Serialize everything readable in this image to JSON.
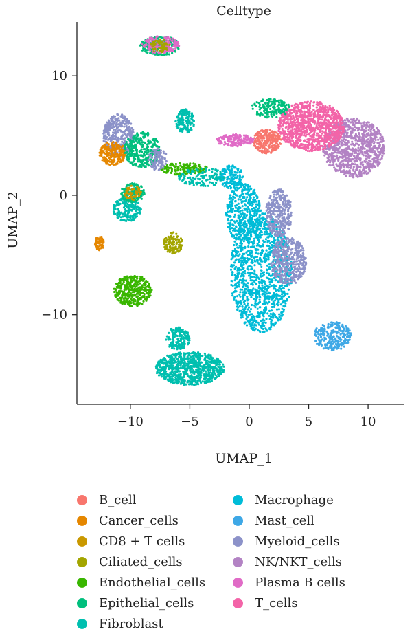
{
  "chart_data": {
    "type": "scatter",
    "title": "Celltype",
    "xlabel": "UMAP_1",
    "ylabel": "UMAP_2",
    "xlim": [
      -14.5,
      13
    ],
    "ylim": [
      -17.5,
      14.5
    ],
    "xticks": [
      -10,
      -5,
      0,
      5,
      10
    ],
    "yticks": [
      10,
      0,
      -10
    ],
    "xtick_labels": [
      "−10",
      "−5",
      "0",
      "5",
      "10"
    ],
    "ytick_labels": [
      "10",
      "0",
      "−10"
    ],
    "legend_position": "bottom",
    "series": [
      {
        "name": "B_cell",
        "color": "#F8766D"
      },
      {
        "name": "Cancer_cells",
        "color": "#E58700"
      },
      {
        "name": "CD8 + T cells",
        "color": "#C99800"
      },
      {
        "name": "Ciliated_cells",
        "color": "#A3A500"
      },
      {
        "name": "Endothelial_cells",
        "color": "#39B600"
      },
      {
        "name": "Epithelial_cells",
        "color": "#00BF7D"
      },
      {
        "name": "Fibroblast",
        "color": "#00BFAF"
      },
      {
        "name": "Macrophage",
        "color": "#00BCD8"
      },
      {
        "name": "Mast_cell",
        "color": "#3EA8E6"
      },
      {
        "name": "Myeloid_cells",
        "color": "#8C92C9"
      },
      {
        "name": "NK/NKT_cells",
        "color": "#B383C4"
      },
      {
        "name": "Plasma B cells",
        "color": "#E06BC6"
      },
      {
        "name": "T_cells",
        "color": "#F364A8"
      }
    ],
    "clusters": [
      {
        "series": "Macrophage",
        "cx": 1.0,
        "cy": -6.5,
        "rx": 2.6,
        "ry": 5.0,
        "n": 1200
      },
      {
        "series": "Macrophage",
        "cx": -0.5,
        "cy": -1.5,
        "rx": 1.5,
        "ry": 2.5,
        "n": 400
      },
      {
        "series": "Macrophage",
        "cx": -1.5,
        "cy": 1.5,
        "rx": 1.0,
        "ry": 1.0,
        "n": 150
      },
      {
        "series": "Myeloid_cells",
        "cx": 2.5,
        "cy": -1.5,
        "rx": 1.1,
        "ry": 2.0,
        "n": 300
      },
      {
        "series": "Myeloid_cells",
        "cx": 3.3,
        "cy": -5.5,
        "rx": 1.5,
        "ry": 2.0,
        "n": 400
      },
      {
        "series": "Mast_cell",
        "cx": 7.0,
        "cy": -11.8,
        "rx": 1.6,
        "ry": 1.2,
        "n": 250
      },
      {
        "series": "Fibroblast",
        "cx": -5.0,
        "cy": -14.5,
        "rx": 2.9,
        "ry": 1.4,
        "n": 800
      },
      {
        "series": "Fibroblast",
        "cx": -6.0,
        "cy": -12.0,
        "rx": 1.0,
        "ry": 1.0,
        "n": 150
      },
      {
        "series": "Endothelial_cells",
        "cx": -9.8,
        "cy": -8.0,
        "rx": 1.6,
        "ry": 1.3,
        "n": 350
      },
      {
        "series": "Ciliated_cells",
        "cx": -6.4,
        "cy": -4.0,
        "rx": 0.8,
        "ry": 0.9,
        "n": 120
      },
      {
        "series": "Fibroblast",
        "cx": -10.3,
        "cy": -1.2,
        "rx": 1.2,
        "ry": 1.0,
        "n": 200
      },
      {
        "series": "Epithelial_cells",
        "cx": -9.8,
        "cy": 0.2,
        "rx": 1.0,
        "ry": 0.8,
        "n": 150
      },
      {
        "series": "CD8 + T cells",
        "cx": -9.8,
        "cy": 0.2,
        "rx": 0.7,
        "ry": 0.6,
        "n": 50
      },
      {
        "series": "Cancer_cells",
        "cx": -12.6,
        "cy": -4.0,
        "rx": 0.4,
        "ry": 0.6,
        "n": 80
      },
      {
        "series": "Myeloid_cells",
        "cx": -11.0,
        "cy": 5.0,
        "rx": 1.3,
        "ry": 1.8,
        "n": 350
      },
      {
        "series": "Cancer_cells",
        "cx": -11.5,
        "cy": 3.5,
        "rx": 1.1,
        "ry": 1.0,
        "n": 200
      },
      {
        "series": "Epithelial_cells",
        "cx": -9.0,
        "cy": 3.8,
        "rx": 1.5,
        "ry": 1.5,
        "n": 300
      },
      {
        "series": "Endothelial_cells",
        "cx": -5.5,
        "cy": 2.2,
        "rx": 2.0,
        "ry": 0.5,
        "n": 150
      },
      {
        "series": "Myeloid_cells",
        "cx": -7.7,
        "cy": 3.0,
        "rx": 0.8,
        "ry": 0.9,
        "n": 100
      },
      {
        "series": "Fibroblast",
        "cx": -5.4,
        "cy": 6.2,
        "rx": 0.8,
        "ry": 1.0,
        "n": 150
      },
      {
        "series": "Fibroblast",
        "cx": -4.0,
        "cy": 1.5,
        "rx": 2.0,
        "ry": 0.8,
        "n": 120
      },
      {
        "series": "Epithelial_cells",
        "cx": -7.5,
        "cy": 12.5,
        "rx": 1.7,
        "ry": 0.8,
        "n": 200
      },
      {
        "series": "Plasma B cells",
        "cx": -7.5,
        "cy": 12.6,
        "rx": 1.6,
        "ry": 0.7,
        "n": 150
      },
      {
        "series": "Ciliated_cells",
        "cx": -7.5,
        "cy": 12.5,
        "rx": 0.8,
        "ry": 0.6,
        "n": 60
      },
      {
        "series": "NK/NKT_cells",
        "cx": 8.8,
        "cy": 4.0,
        "rx": 2.6,
        "ry": 2.5,
        "n": 900
      },
      {
        "series": "T_cells",
        "cx": 5.2,
        "cy": 5.8,
        "rx": 2.8,
        "ry": 2.1,
        "n": 1000
      },
      {
        "series": "B_cell",
        "cx": 1.5,
        "cy": 4.5,
        "rx": 1.2,
        "ry": 1.0,
        "n": 250
      },
      {
        "series": "Plasma B cells",
        "cx": -1.2,
        "cy": 4.6,
        "rx": 1.6,
        "ry": 0.5,
        "n": 150
      },
      {
        "series": "Epithelial_cells",
        "cx": 1.8,
        "cy": 7.3,
        "rx": 1.6,
        "ry": 0.8,
        "n": 150
      }
    ]
  },
  "legend": {
    "col1": [
      {
        "label": "B_cell",
        "color": "#F8766D"
      },
      {
        "label": "Cancer_cells",
        "color": "#E58700"
      },
      {
        "label": "CD8 + T cells",
        "color": "#C99800"
      },
      {
        "label": "Ciliated_cells",
        "color": "#A3A500"
      },
      {
        "label": "Endothelial_cells",
        "color": "#39B600"
      },
      {
        "label": "Epithelial_cells",
        "color": "#00BF7D"
      },
      {
        "label": "Fibroblast",
        "color": "#00BFAF"
      }
    ],
    "col2": [
      {
        "label": "Macrophage",
        "color": "#00BCD8"
      },
      {
        "label": "Mast_cell",
        "color": "#3EA8E6"
      },
      {
        "label": "Myeloid_cells",
        "color": "#8C92C9"
      },
      {
        "label": "NK/NKT_cells",
        "color": "#B383C4"
      },
      {
        "label": "Plasma B cells",
        "color": "#E06BC6"
      },
      {
        "label": "T_cells",
        "color": "#F364A8"
      }
    ]
  }
}
